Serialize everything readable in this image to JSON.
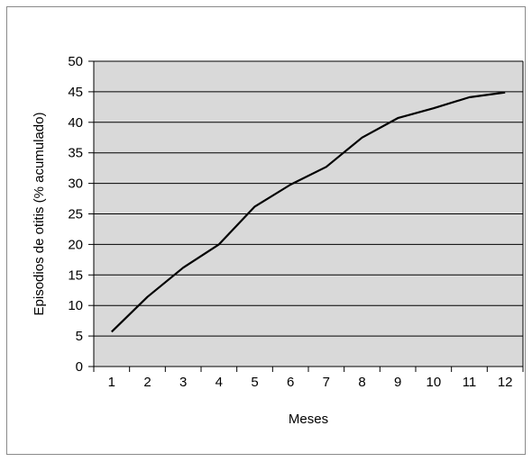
{
  "chart_data": {
    "type": "line",
    "title": "",
    "xlabel": "Meses",
    "ylabel": "Episodios de otitis (% acumulado)",
    "categories": [
      "1",
      "2",
      "3",
      "4",
      "5",
      "6",
      "7",
      "8",
      "9",
      "10",
      "11",
      "12"
    ],
    "series": [
      {
        "values": [
          5.7,
          11.4,
          16.2,
          20.0,
          26.2,
          29.8,
          32.7,
          37.5,
          40.7,
          42.3,
          44.1,
          44.9
        ]
      }
    ],
    "ylim": [
      0,
      50
    ],
    "yticks": [
      "0",
      "5",
      "10",
      "15",
      "20",
      "25",
      "30",
      "35",
      "40",
      "45",
      "50"
    ],
    "grid": true,
    "legend": "none",
    "colors": {
      "plot_background": "#d9d9d9",
      "line": "#000000",
      "gridline": "#000000",
      "frame": "#8a8a8a"
    }
  }
}
